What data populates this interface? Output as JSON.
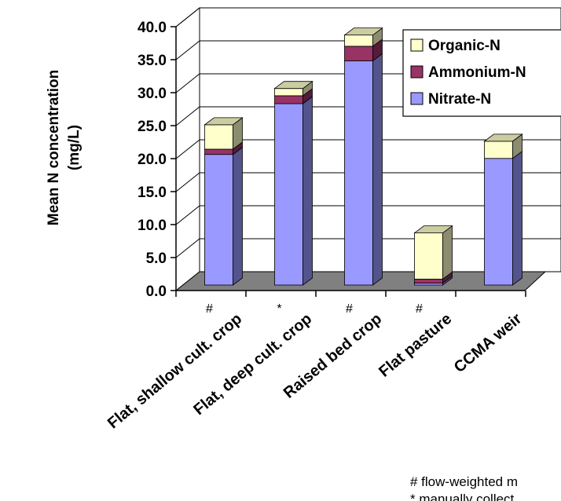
{
  "chart_data": {
    "type": "bar",
    "stacked": true,
    "three_d": true,
    "title": "",
    "ylabel_line1": "Mean N concentration",
    "ylabel_line2": "(mg/L)",
    "xlabel": "",
    "ylim": [
      0,
      40
    ],
    "yticks": [
      "0.0",
      "5.0",
      "10.0",
      "15.0",
      "20.0",
      "25.0",
      "30.0",
      "35.0",
      "40.0"
    ],
    "grid": true,
    "legend_position": "top-right",
    "categories": [
      "Flat, shallow cult. crop",
      "Flat, deep cult. crop",
      "Raised bed crop",
      "Flat pasture",
      "CCMA weir"
    ],
    "category_marks": [
      "#",
      "*",
      "#",
      "#",
      ""
    ],
    "series": [
      {
        "name": "Nitrate-N",
        "color": "#9999FF",
        "values": [
          19.8,
          27.5,
          34.0,
          0.3,
          19.2
        ]
      },
      {
        "name": "Ammonium-N",
        "color": "#993366",
        "values": [
          0.8,
          1.2,
          2.2,
          0.6,
          0.0
        ]
      },
      {
        "name": "Organic-N",
        "color": "#FFFFCC",
        "values": [
          3.7,
          1.1,
          1.7,
          7.0,
          2.6
        ]
      }
    ],
    "legend_order": [
      "Organic-N",
      "Ammonium-N",
      "Nitrate-N"
    ],
    "footnotes": [
      "# flow-weighted m",
      "* manually collect"
    ]
  }
}
